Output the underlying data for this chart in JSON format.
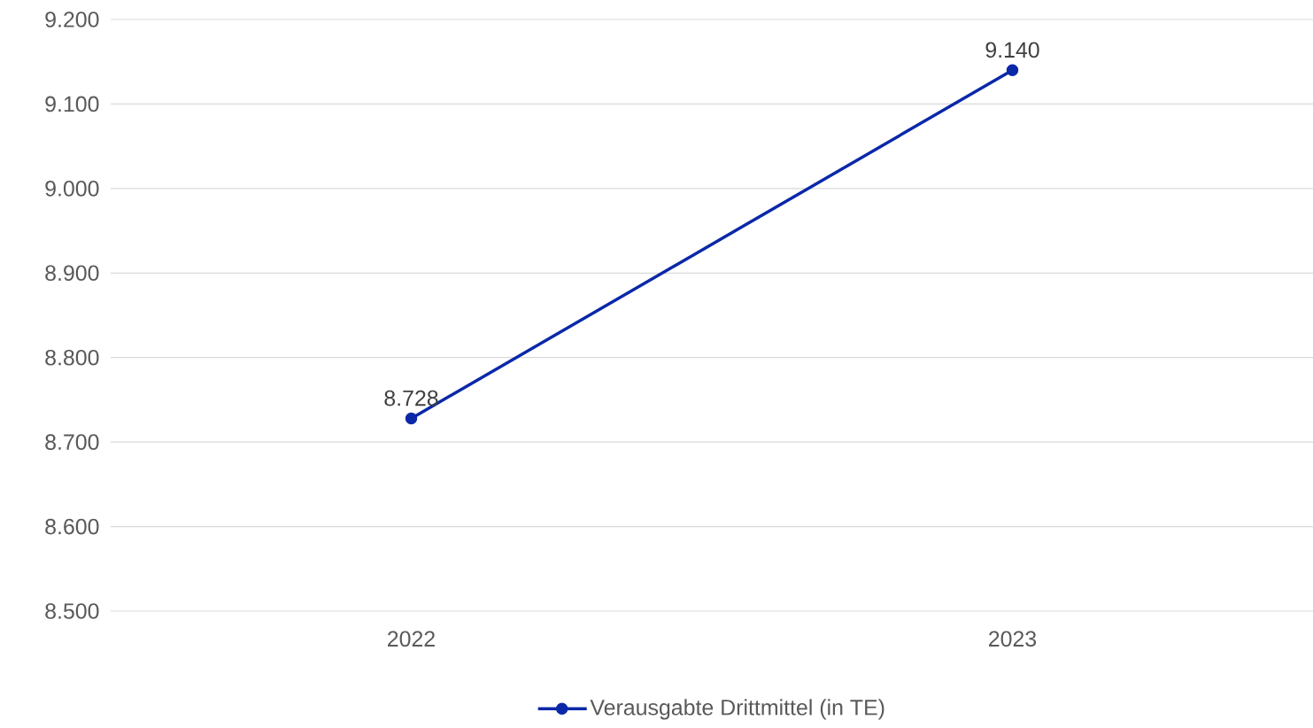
{
  "chart_data": {
    "type": "line",
    "categories": [
      "2022",
      "2023"
    ],
    "series": [
      {
        "name": "Verausgabte Drittmittel (in TE)",
        "color": "#0a28a8",
        "values": [
          8728,
          9140
        ],
        "value_labels": [
          "8.728",
          "9.140"
        ]
      }
    ],
    "ylim": [
      8500,
      9200
    ],
    "yticks": [
      {
        "value": 8500,
        "label": "8.500"
      },
      {
        "value": 8600,
        "label": "8.600"
      },
      {
        "value": 8700,
        "label": "8.700"
      },
      {
        "value": 8800,
        "label": "8.800"
      },
      {
        "value": 8900,
        "label": "8.900"
      },
      {
        "value": 9000,
        "label": "9.000"
      },
      {
        "value": 9100,
        "label": "9.100"
      },
      {
        "value": 9200,
        "label": "9.200"
      }
    ],
    "grid": "y",
    "legend": "bottom",
    "marker": "circle",
    "line_style": "solid"
  }
}
